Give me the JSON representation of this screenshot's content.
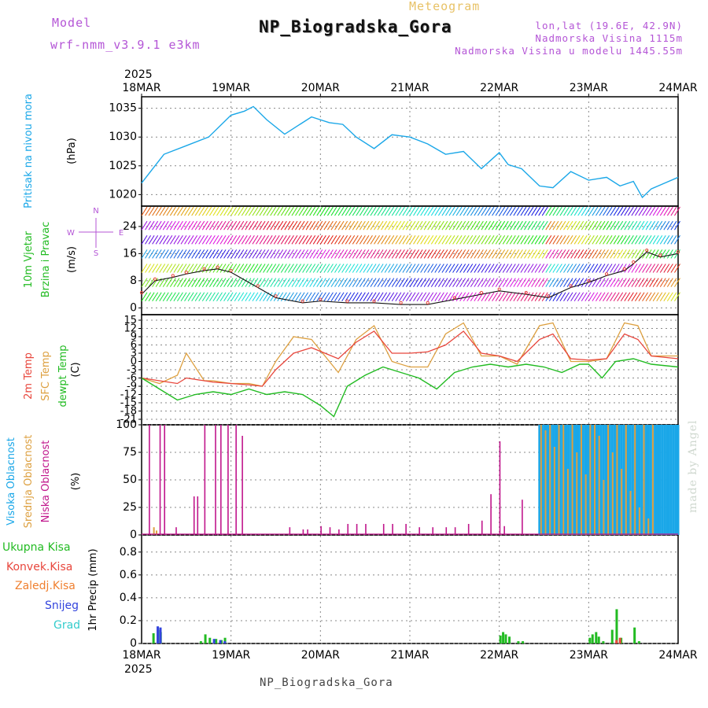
{
  "header": {
    "model_label": "Model",
    "model_name": "wrf-nmm_v3.9.1 e3km",
    "product": "Meteogram",
    "station": "NP_Biogradska_Gora",
    "coords": "lon,lat (19.6E, 42.9N)",
    "altitude": "Nadmorska Visina 1115m",
    "model_altitude": "Nadmorska Visina u modelu 1445.55m"
  },
  "footer": {
    "station": "NP_Biogradska_Gora",
    "credit": "made by Angel"
  },
  "colors": {
    "pressure": "#1aa7e8",
    "wind_label": "#22bb22",
    "temp2m": "#e8463c",
    "sfc": "#dda040",
    "dewpt": "#22bb22",
    "high_cloud": "#1aa7e8",
    "mid_cloud": "#dda040",
    "low_cloud": "#c0168c",
    "total_precip": "#22bb22",
    "conv_precip": "#e8463c",
    "frozen_precip": "#f08030",
    "snow": "#3344dd",
    "graupel": "#33cccc",
    "grid": "#888888",
    "axis": "#000000"
  },
  "chart_data": [
    {
      "type": "line",
      "panel": "pressure",
      "ylabel": "Pritisak na nivou mora",
      "unit": "(hPa)",
      "year": "2025",
      "xticks": [
        "18MAR",
        "19MAR",
        "20MAR",
        "21MAR",
        "22MAR",
        "23MAR",
        "24MAR"
      ],
      "yticks": [
        "1020",
        "1025",
        "1030",
        "1035"
      ],
      "ylim": [
        1018,
        1037
      ],
      "series": [
        {
          "name": "Pritisak",
          "x": [
            0,
            0.1,
            0.25,
            0.5,
            0.75,
            1.0,
            1.15,
            1.25,
            1.4,
            1.6,
            1.9,
            2.1,
            2.25,
            2.4,
            2.6,
            2.8,
            3.0,
            3.2,
            3.4,
            3.6,
            3.8,
            4.0,
            4.1,
            4.25,
            4.45,
            4.6,
            4.8,
            5.0,
            5.2,
            5.35,
            5.5,
            5.6,
            5.7,
            5.85,
            6.0
          ],
          "values": [
            1022,
            1024,
            1027,
            1028.5,
            1030,
            1033.8,
            1034.5,
            1035.3,
            1033,
            1030.5,
            1033.5,
            1032.5,
            1032.2,
            1030,
            1028,
            1030.4,
            1030,
            1028.8,
            1027,
            1027.5,
            1024.5,
            1027.3,
            1025.2,
            1024.5,
            1021.5,
            1021.2,
            1024,
            1022.5,
            1023,
            1021.5,
            1022.3,
            1019.5,
            1021,
            1022,
            1023
          ]
        }
      ]
    },
    {
      "type": "line",
      "panel": "wind",
      "ylabel": "10m Vjetar",
      "ylabel2": "Brzina i Pravac",
      "unit": "(m/s)",
      "compass": {
        "north": "N",
        "west": "W",
        "east": "E",
        "south": "S"
      },
      "yticks": [
        "0",
        "8",
        "16",
        "24"
      ],
      "ylim": [
        -2,
        30
      ],
      "series": [
        {
          "name": "Brzina vjetra",
          "x": [
            0,
            0.15,
            0.35,
            0.5,
            0.7,
            0.85,
            1.0,
            1.3,
            1.5,
            1.8,
            2.0,
            2.3,
            2.6,
            2.9,
            3.2,
            3.5,
            3.8,
            4.0,
            4.3,
            4.55,
            4.8,
            5.0,
            5.2,
            5.4,
            5.5,
            5.65,
            5.8,
            6.0
          ],
          "values": [
            4,
            8,
            9,
            10,
            11,
            11.5,
            10.5,
            6,
            3,
            1.5,
            2,
            1.5,
            1.5,
            1,
            1,
            2.5,
            4,
            5,
            4,
            3,
            6,
            7.5,
            9.5,
            11,
            13,
            16.5,
            15,
            16
          ]
        }
      ],
      "arrow_rows": 7
    },
    {
      "type": "line",
      "panel": "temperature",
      "ylabel": "2m Temp",
      "ylabel2": "SFC Temp",
      "ylabel3": "dewpt Temp",
      "unit": "(C)",
      "yticks": [
        "-21",
        "-18",
        "-15",
        "-12",
        "-9",
        "-6",
        "-3",
        "0",
        "3",
        "6",
        "9",
        "12",
        "15"
      ],
      "ylim": [
        -23,
        17
      ],
      "series": [
        {
          "name": "2m Temp",
          "x": [
            0,
            0.2,
            0.4,
            0.5,
            0.8,
            1.0,
            1.2,
            1.35,
            1.5,
            1.7,
            1.9,
            2.2,
            2.4,
            2.6,
            2.8,
            3.0,
            3.2,
            3.4,
            3.6,
            3.8,
            4.0,
            4.2,
            4.45,
            4.6,
            4.8,
            5.0,
            5.2,
            5.4,
            5.55,
            5.7,
            6.0
          ],
          "values": [
            -6,
            -7,
            -8,
            -6,
            -7.5,
            -8,
            -8.5,
            -9,
            -3,
            3,
            5,
            1,
            7,
            11,
            3,
            3,
            3.5,
            6,
            11,
            3,
            2,
            0,
            8,
            10,
            1,
            0.5,
            1,
            10,
            8,
            2,
            1
          ]
        },
        {
          "name": "SFC Temp",
          "x": [
            0,
            0.2,
            0.4,
            0.5,
            0.7,
            0.8,
            1.0,
            1.2,
            1.35,
            1.5,
            1.7,
            1.9,
            2.2,
            2.4,
            2.6,
            2.8,
            3.0,
            3.2,
            3.4,
            3.6,
            3.8,
            4.0,
            4.2,
            4.45,
            4.6,
            4.8,
            5.0,
            5.2,
            5.4,
            5.55,
            5.7,
            6.0
          ],
          "values": [
            -6,
            -8,
            -5,
            3,
            -7,
            -7,
            -8,
            -8,
            -9,
            0,
            9,
            8,
            -4,
            8,
            13,
            0,
            -2,
            -2,
            10,
            14,
            2,
            2,
            -1,
            13,
            14,
            0,
            0,
            1,
            14,
            13,
            2,
            2
          ]
        },
        {
          "name": "dewpt Temp",
          "x": [
            0,
            0.2,
            0.4,
            0.6,
            0.8,
            1.0,
            1.2,
            1.4,
            1.6,
            1.8,
            2.0,
            2.15,
            2.3,
            2.5,
            2.7,
            2.9,
            3.1,
            3.3,
            3.5,
            3.7,
            3.9,
            4.1,
            4.3,
            4.5,
            4.7,
            4.9,
            5.0,
            5.15,
            5.3,
            5.5,
            5.7,
            6.0
          ],
          "values": [
            -6,
            -10,
            -14,
            -12,
            -11,
            -12,
            -10,
            -12,
            -11,
            -12,
            -16,
            -20,
            -9,
            -5,
            -2,
            -4,
            -6,
            -10,
            -4,
            -2,
            -1,
            -2,
            -1,
            -2,
            -4,
            -1,
            -1,
            -6,
            0,
            1,
            -1,
            -2
          ]
        }
      ]
    },
    {
      "type": "bar",
      "panel": "clouds",
      "ylabel": "Visoka Oblacnost",
      "ylabel2": "Srednja Oblacnost",
      "ylabel3": "Niska Oblacnost",
      "unit": "(%)",
      "yticks": [
        "0",
        "25",
        "50",
        "75",
        "100"
      ],
      "ylim": [
        0,
        100
      ],
      "series": [
        {
          "name": "Niska Oblacnost",
          "x": [
            0.08,
            0.2,
            0.25,
            0.38,
            0.58,
            0.62,
            0.7,
            0.82,
            0.88,
            0.96,
            1.05,
            1.12,
            1.3,
            1.65,
            1.8,
            1.85,
            2.0,
            2.1,
            2.2,
            2.3,
            2.4,
            2.5,
            2.7,
            2.8,
            2.95,
            3.1,
            3.25,
            3.4,
            3.5,
            3.65,
            3.8,
            3.9,
            4.0,
            4.05,
            4.25
          ],
          "values": [
            100,
            100,
            100,
            7,
            35,
            35,
            100,
            100,
            100,
            100,
            100,
            90,
            1,
            7,
            5,
            5,
            8,
            7,
            5,
            10,
            10,
            10,
            10,
            10,
            10,
            7,
            7,
            7,
            7,
            10,
            13,
            37,
            85,
            8,
            32
          ]
        },
        {
          "name": "Srednja Oblacnost",
          "x": [
            0.12,
            0.15,
            4.45,
            4.5,
            4.55,
            4.6,
            4.65,
            4.7,
            4.75,
            4.8,
            4.85,
            4.9,
            4.95,
            5.0,
            5.05,
            5.1,
            5.15,
            5.2,
            5.25,
            5.3,
            5.35,
            5.4,
            5.45,
            5.5,
            5.55,
            5.6,
            5.65,
            5.7
          ],
          "values": [
            7,
            4,
            100,
            95,
            100,
            80,
            100,
            100,
            60,
            100,
            75,
            100,
            55,
            100,
            100,
            90,
            50,
            100,
            75,
            100,
            60,
            100,
            40,
            100,
            25,
            100,
            15,
            100
          ]
        },
        {
          "name": "Visoka Oblacnost",
          "x_start": 4.45,
          "x_end": 6.0,
          "count": 62,
          "value": 100
        }
      ]
    },
    {
      "type": "bar",
      "panel": "precipitation",
      "labels": [
        "Ukupna Kisa",
        "Konvek.Kisa",
        "Zaledj.Kisa",
        "Snijeg",
        "Grad"
      ],
      "unit": "1hr Precip (mm)",
      "yticks": [
        "0",
        "0.2",
        "0.4",
        "0.6",
        "0.8"
      ],
      "ylim": [
        0,
        0.95
      ],
      "xticks": [
        "18MAR",
        "19MAR",
        "20MAR",
        "21MAR",
        "22MAR",
        "23MAR",
        "24MAR"
      ],
      "year": "2025",
      "series": [
        {
          "name": "Ukupna Kisa",
          "x": [
            0.12,
            0.17,
            0.2,
            0.65,
            0.7,
            0.75,
            0.82,
            0.88,
            0.92,
            4.0,
            4.03,
            4.06,
            4.1,
            4.2,
            4.25,
            5.0,
            5.03,
            5.07,
            5.1,
            5.15,
            5.25,
            5.3,
            5.35,
            5.5,
            5.55
          ],
          "values": [
            0.09,
            0.12,
            0.1,
            0.02,
            0.08,
            0.05,
            0.04,
            0.03,
            0.05,
            0.07,
            0.1,
            0.08,
            0.06,
            0.02,
            0.02,
            0.05,
            0.08,
            0.1,
            0.06,
            0.02,
            0.12,
            0.3,
            0.05,
            0.14,
            0.02
          ]
        },
        {
          "name": "Konvek.Kisa",
          "x": [
            5.28,
            5.32
          ],
          "values": [
            0.03,
            0.05
          ]
        },
        {
          "name": "Snijeg",
          "x": [
            0.15,
            0.18,
            0.78,
            0.85,
            0.9
          ],
          "values": [
            0.15,
            0.14,
            0.04,
            0.03,
            0.02
          ]
        }
      ]
    }
  ]
}
